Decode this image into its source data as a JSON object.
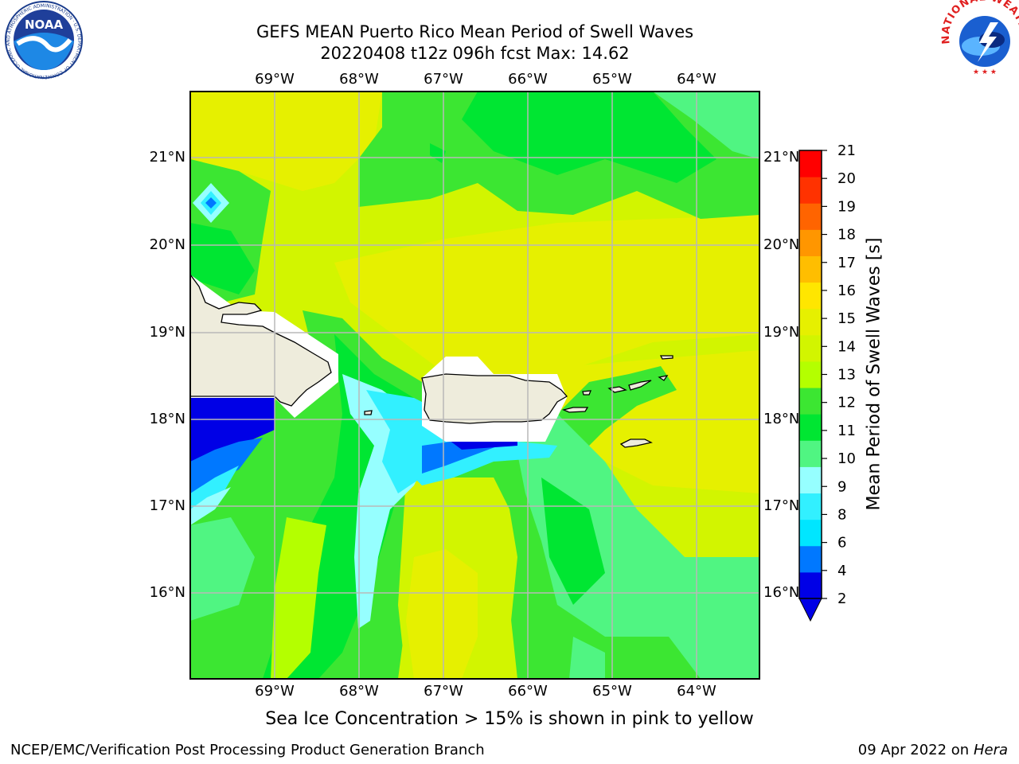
{
  "title": {
    "line1": "GEFS MEAN Puerto Rico Mean Period of Swell Waves",
    "line2": "20220408 t12z 096h fcst   Max: 14.62"
  },
  "map": {
    "lon_labels": [
      "69°W",
      "68°W",
      "67°W",
      "66°W",
      "65°W",
      "64°W"
    ],
    "lat_labels": [
      "21°N",
      "20°N",
      "19°N",
      "18°N",
      "17°N",
      "16°N"
    ],
    "land_color": "#eeecdc",
    "gridline_color": "#b8b8b8"
  },
  "colorbar": {
    "label": "Mean Period of Swell Waves [s]",
    "ticks": [
      "21",
      "20",
      "19",
      "18",
      "17",
      "16",
      "15",
      "14",
      "13",
      "12",
      "11",
      "10",
      "9",
      "8",
      "6",
      "4",
      "2"
    ],
    "colors": [
      "#0000e6",
      "#0078ff",
      "#00e6ff",
      "#32f0ff",
      "#96ffff",
      "#50f582",
      "#00e632",
      "#3ce632",
      "#b4ff00",
      "#d2f500",
      "#e6f000",
      "#ffe600",
      "#ffbe00",
      "#ff9600",
      "#ff6400",
      "#ff3200",
      "#ff0000"
    ],
    "extend_color": "#0000e6"
  },
  "note": "Sea Ice Concentration > 15% is shown in pink to yellow",
  "footer": {
    "left": "NCEP/EMC/Verification Post Processing Product Generation Branch",
    "right_date": "09 Apr 2022 on",
    "right_host": "Hera"
  },
  "logos": {
    "noaa_text": "NOAA",
    "noaa_ring": "NATIONAL OCEANIC AND ATMOSPHERIC ADMINISTRATION · U.S. DEPARTMENT OF COMMERCE",
    "nws_ring": "NATIONAL WEATHER SERVICE"
  }
}
